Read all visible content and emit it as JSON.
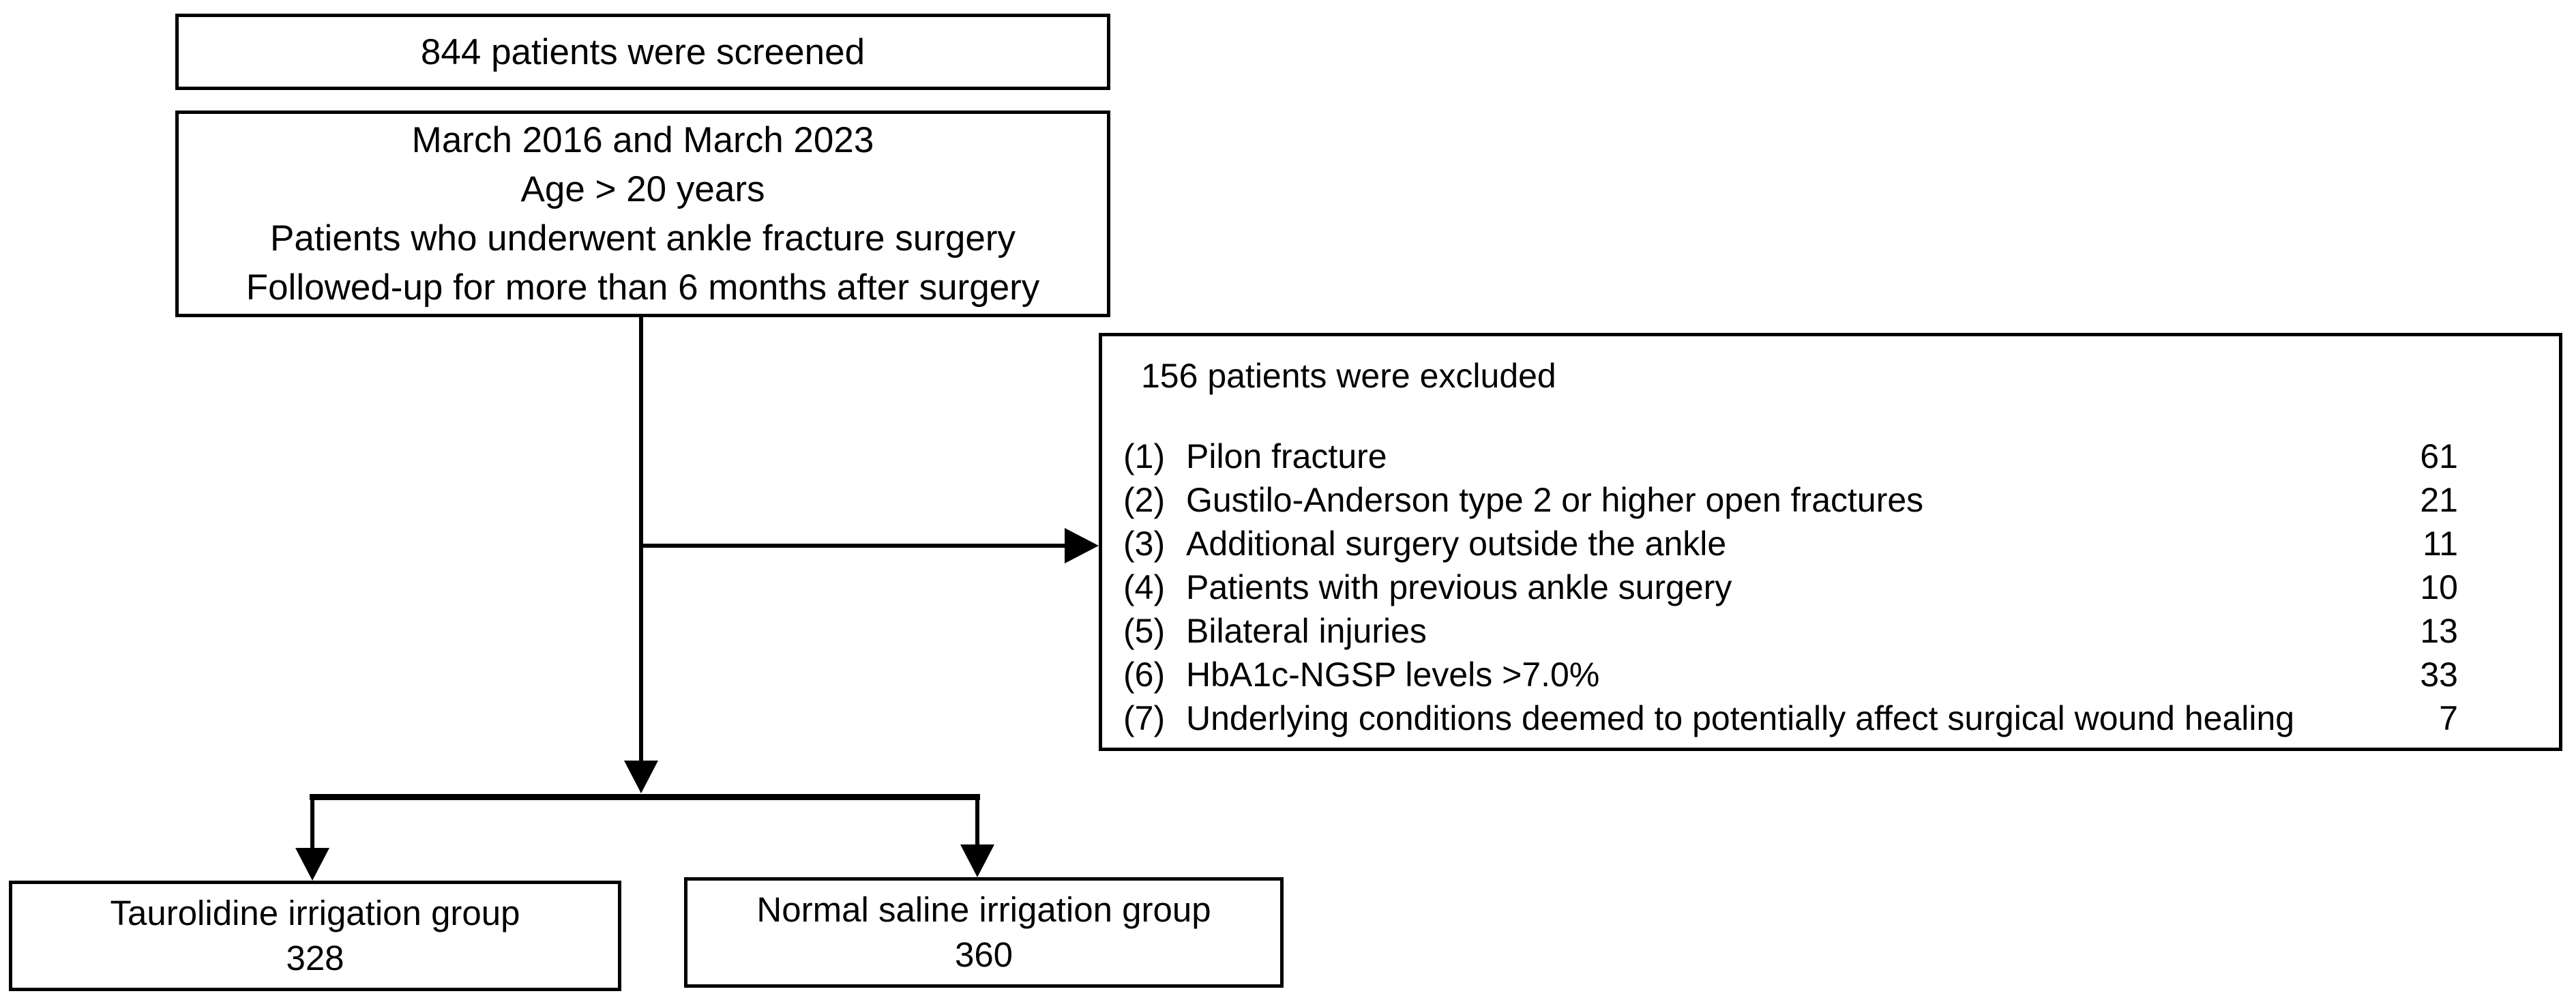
{
  "colors": {
    "ink": "#000000",
    "paper": "#ffffff"
  },
  "screened": {
    "text": "844 patients were screened"
  },
  "criteria": {
    "lines": [
      "March 2016 and March 2023",
      "Age > 20 years",
      "Patients who underwent ankle fracture surgery",
      "Followed-up for more than 6 months after surgery"
    ]
  },
  "excluded": {
    "title": "156 patients were excluded",
    "items": [
      {
        "label": "(1)",
        "text": "Pilon fracture",
        "count": "61"
      },
      {
        "label": "(2)",
        "text": "Gustilo-Anderson type 2 or higher open fractures",
        "count": "21"
      },
      {
        "label": "(3)",
        "text": "Additional surgery outside the ankle",
        "count": "11"
      },
      {
        "label": "(4)",
        "text": "Patients with previous ankle surgery",
        "count": "10"
      },
      {
        "label": "(5)",
        "text": "Bilateral injuries",
        "count": "13"
      },
      {
        "label": "(6)",
        "text": "HbA1c-NGSP levels >7.0%",
        "count": "33"
      },
      {
        "label": "(7)",
        "text": "Underlying conditions deemed to potentially affect surgical wound healing",
        "count": "7"
      }
    ]
  },
  "groups": {
    "left": {
      "title": "Taurolidine irrigation group",
      "count": "328"
    },
    "right": {
      "title": "Normal saline irrigation group",
      "count": "360"
    }
  }
}
